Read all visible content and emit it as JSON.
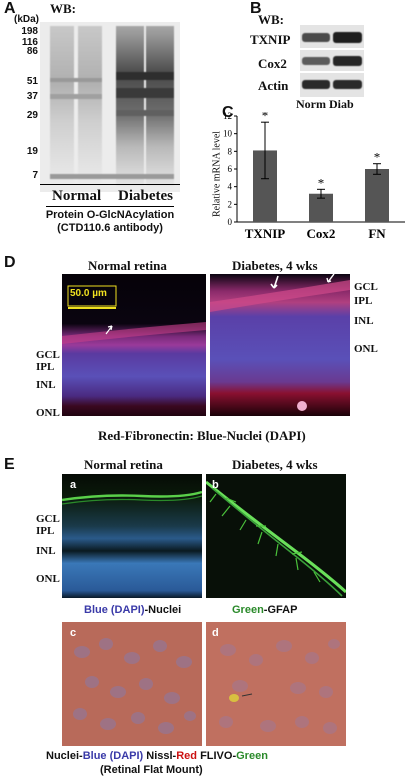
{
  "panelA": {
    "letter": "A",
    "unit": "(kDa)",
    "wb": "WB:",
    "ladder": [
      "198",
      "116",
      "86",
      "51",
      "37",
      "29",
      "19",
      "7"
    ],
    "lane_normal": "Normal",
    "lane_diabetes": "Diabetes",
    "caption1": "Protein O-GlcNAcylation",
    "caption2": "(CTD110.6 antibody)"
  },
  "panelB": {
    "letter": "B",
    "wb": "WB:",
    "rows": [
      "TXNIP",
      "Cox2",
      "Actin"
    ],
    "lanes": "Norm Diab"
  },
  "panelC": {
    "letter": "C",
    "ylabel": "Relative mRNA level",
    "star": "*"
  },
  "chart_data": {
    "type": "bar",
    "categories": [
      "TXNIP",
      "Cox2",
      "FN"
    ],
    "values": [
      8.1,
      3.2,
      6.0
    ],
    "errors": [
      3.2,
      0.5,
      0.6
    ],
    "ylim": [
      0,
      12
    ],
    "yticks": [
      "0",
      "2",
      "4",
      "6",
      "8",
      "10",
      "12"
    ],
    "ylabel": "Relative mRNA level",
    "xlabel": "",
    "title": "",
    "significance": [
      "*",
      "*",
      "*"
    ],
    "bar_color": "#555555"
  },
  "panelD": {
    "letter": "D",
    "title_left": "Normal retina",
    "title_right": "Diabetes, 4 wks",
    "scale": "50.0 µm",
    "layers_left": [
      "GCL",
      "IPL",
      "INL",
      "ONL"
    ],
    "layers_right": [
      "GCL",
      "IPL",
      "INL",
      "ONL"
    ],
    "caption": "Red-Fibronectin: Blue-Nuclei (DAPI)"
  },
  "panelE": {
    "letter": "E",
    "title_left": "Normal retina",
    "title_right": "Diabetes, 4 wks",
    "layers": [
      "GCL",
      "IPL",
      "INL",
      "ONL"
    ],
    "sub_a": "a",
    "sub_b": "b",
    "sub_c": "c",
    "sub_d": "d",
    "cap_blue": "Blue (DAPI)",
    "cap_nuclei": "-Nuclei",
    "cap_green": "Green",
    "cap_gfap": "-GFAP",
    "cap2_nuclei": "Nuclei-",
    "cap2_blue": "Blue (DAPI)",
    "cap2_nissl": "Nissl-",
    "cap2_red": "Red",
    "cap2_flivo": "FLIVO-",
    "cap2_green": "Green",
    "cap2_mount": "(Retinal Flat Mount)",
    "colors": {
      "blue": "#3a3aa8",
      "green": "#2a8a2a",
      "red": "#cc1111"
    }
  }
}
